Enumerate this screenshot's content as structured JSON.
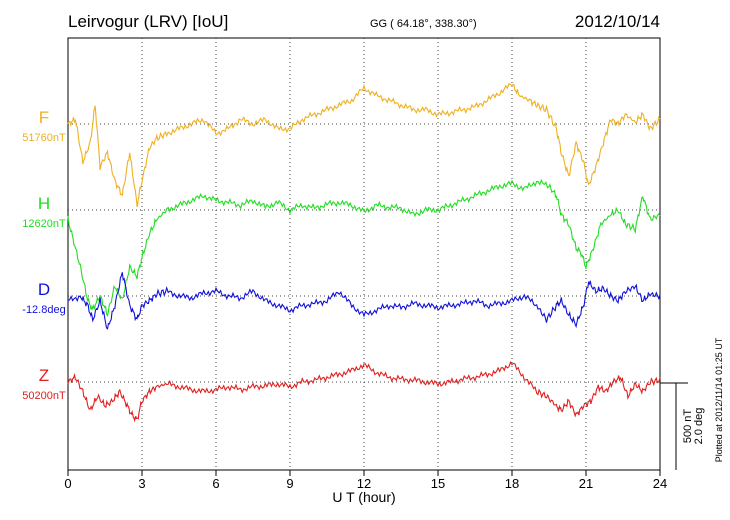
{
  "header": {
    "station": "Leirvogur (LRV)  [IoU]",
    "coords": "GG ( 64.18°, 338.30°)",
    "date": "2012/10/14"
  },
  "side_note": "Plotted at 2012/11/14 01:25 UT",
  "scale_bar": {
    "line1": "500 nT",
    "line2": "2.0 deg"
  },
  "colors": {
    "F": "#f0b020",
    "H": "#22dd22",
    "D": "#1010dd",
    "Z": "#e02020",
    "axis": "#000000"
  },
  "chart_data": {
    "type": "line",
    "xlabel": "U T (hour)",
    "xlim": [
      0,
      24
    ],
    "xticks": [
      0,
      3,
      6,
      9,
      12,
      15,
      18,
      21,
      24
    ],
    "grid": true,
    "series": [
      {
        "name": "F",
        "baseline_label": "51760nT",
        "x": [
          0,
          0.3,
          0.6,
          0.9,
          1.1,
          1.3,
          1.6,
          1.9,
          2.2,
          2.5,
          2.8,
          3.0,
          3.3,
          3.6,
          4.0,
          4.5,
          5.0,
          5.5,
          6.0,
          6.5,
          7.0,
          7.5,
          8.0,
          8.5,
          9.0,
          9.5,
          10.0,
          10.5,
          11.0,
          11.5,
          12.0,
          12.5,
          13.0,
          13.5,
          14.0,
          14.5,
          15.0,
          15.5,
          16.0,
          16.5,
          17.0,
          17.5,
          18.0,
          18.3,
          18.7,
          19.0,
          19.4,
          19.8,
          20.0,
          20.3,
          20.6,
          20.9,
          21.1,
          21.4,
          21.7,
          22.0,
          22.3,
          22.6,
          23.0,
          23.3,
          23.6,
          24.0
        ],
        "v": [
          0,
          5,
          -40,
          -20,
          20,
          -45,
          -30,
          -60,
          -75,
          -30,
          -85,
          -60,
          -25,
          -15,
          -10,
          -5,
          0,
          5,
          -10,
          -5,
          5,
          0,
          5,
          -5,
          -5,
          5,
          10,
          15,
          20,
          25,
          38,
          30,
          25,
          20,
          15,
          15,
          10,
          12,
          15,
          18,
          25,
          33,
          42,
          30,
          25,
          20,
          15,
          -5,
          -30,
          -55,
          -20,
          -40,
          -65,
          -45,
          -20,
          5,
          0,
          10,
          2,
          10,
          -5,
          5
        ]
      },
      {
        "name": "H",
        "baseline_label": "12620nT",
        "x": [
          0,
          0.2,
          0.5,
          0.8,
          1.0,
          1.3,
          1.6,
          1.9,
          2.2,
          2.5,
          2.8,
          3.0,
          3.3,
          3.6,
          4.0,
          4.5,
          5.0,
          5.5,
          6.0,
          6.5,
          7.0,
          7.5,
          8.0,
          8.5,
          9.0,
          9.5,
          10.0,
          10.5,
          11.0,
          11.5,
          12.0,
          12.5,
          13.0,
          13.5,
          14.0,
          14.5,
          15.0,
          15.5,
          16.0,
          16.5,
          17.0,
          17.5,
          18.0,
          18.5,
          19.0,
          19.5,
          19.8,
          20.0,
          20.3,
          20.6,
          20.8,
          21.0,
          21.3,
          21.6,
          22.0,
          22.3,
          22.6,
          23.0,
          23.3,
          23.6,
          24.0
        ],
        "v": [
          -10,
          -30,
          -60,
          -95,
          -105,
          -90,
          -110,
          -80,
          -95,
          -60,
          -70,
          -50,
          -25,
          -10,
          0,
          5,
          10,
          15,
          10,
          8,
          5,
          10,
          3,
          8,
          0,
          5,
          2,
          6,
          8,
          5,
          -2,
          5,
          3,
          2,
          -5,
          0,
          0,
          5,
          10,
          15,
          20,
          25,
          28,
          22,
          30,
          25,
          15,
          -5,
          -15,
          -40,
          -45,
          -60,
          -40,
          -15,
          -5,
          0,
          -15,
          -20,
          15,
          -10,
          -5
        ]
      },
      {
        "name": "D",
        "baseline_label": "-12.8deg",
        "x": [
          0,
          0.5,
          0.8,
          1.0,
          1.3,
          1.6,
          1.9,
          2.2,
          2.5,
          2.8,
          3.0,
          3.3,
          3.6,
          4.0,
          4.5,
          5.0,
          5.5,
          6.0,
          6.5,
          7.0,
          7.5,
          8.0,
          8.5,
          9.0,
          9.5,
          10.0,
          10.5,
          11.0,
          11.5,
          12.0,
          12.5,
          13.0,
          13.5,
          14.0,
          14.5,
          15.0,
          15.5,
          16.0,
          16.5,
          17.0,
          17.5,
          18.0,
          18.5,
          19.0,
          19.4,
          19.8,
          20.0,
          20.3,
          20.6,
          20.9,
          21.1,
          21.4,
          21.7,
          22.0,
          22.3,
          22.6,
          23.0,
          23.3,
          23.6,
          24.0
        ],
        "v": [
          -5,
          0,
          -10,
          -25,
          -5,
          -35,
          -10,
          25,
          -10,
          -25,
          -10,
          -5,
          2,
          5,
          0,
          -2,
          3,
          5,
          0,
          -2,
          5,
          -5,
          -10,
          -15,
          -10,
          -8,
          -5,
          5,
          -10,
          -20,
          -15,
          -10,
          -12,
          -8,
          -10,
          -12,
          -10,
          -8,
          -5,
          -10,
          -8,
          -5,
          0,
          -10,
          -25,
          -10,
          -5,
          -20,
          -30,
          -10,
          15,
          5,
          8,
          0,
          -5,
          5,
          10,
          -5,
          2,
          0
        ]
      },
      {
        "name": "Z",
        "baseline_label": "50200nT",
        "x": [
          0,
          0.3,
          0.6,
          0.9,
          1.2,
          1.5,
          1.8,
          2.1,
          2.4,
          2.6,
          2.8,
          3.0,
          3.3,
          3.6,
          4.0,
          4.5,
          5.0,
          5.5,
          6.0,
          6.5,
          7.0,
          7.5,
          8.0,
          8.5,
          9.0,
          9.5,
          10.0,
          10.5,
          11.0,
          11.5,
          12.0,
          12.5,
          13.0,
          13.5,
          14.0,
          14.5,
          15.0,
          15.5,
          16.0,
          16.5,
          17.0,
          17.5,
          18.0,
          18.5,
          19.0,
          19.4,
          19.8,
          20.0,
          20.3,
          20.6,
          20.9,
          21.2,
          21.5,
          21.8,
          22.1,
          22.4,
          22.7,
          23.0,
          23.3,
          23.6,
          24.0
        ],
        "v": [
          0,
          5,
          -10,
          -30,
          -15,
          -25,
          -20,
          -10,
          -25,
          -35,
          -40,
          -20,
          -10,
          -5,
          -2,
          -5,
          -8,
          -10,
          -8,
          -5,
          -8,
          -5,
          -4,
          -2,
          -5,
          0,
          2,
          5,
          8,
          12,
          18,
          10,
          5,
          3,
          2,
          0,
          -2,
          0,
          3,
          5,
          8,
          12,
          20,
          5,
          -10,
          -15,
          -25,
          -30,
          -20,
          -35,
          -25,
          -20,
          -5,
          -10,
          0,
          5,
          -15,
          -2,
          -10,
          0,
          2
        ]
      }
    ]
  }
}
